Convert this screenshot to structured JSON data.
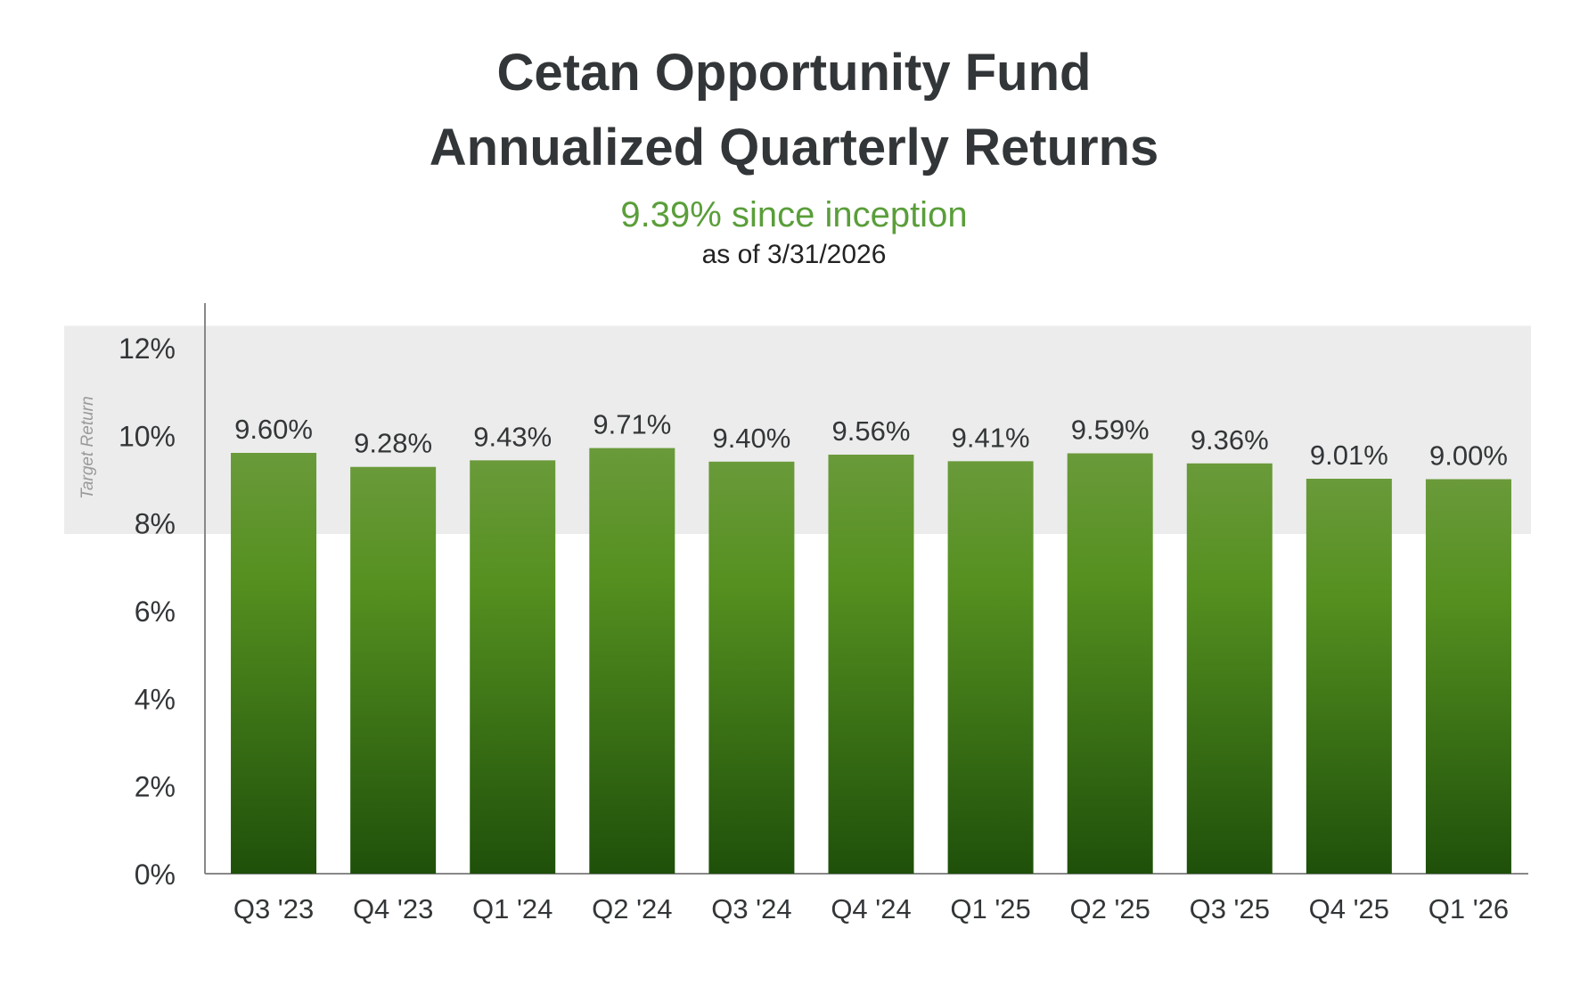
{
  "header": {
    "title_line1": "Cetan Opportunity Fund",
    "title_line2": "Annualized Quarterly Returns",
    "since_inception": "9.39% since inception",
    "as_of": "as of 3/31/2026"
  },
  "colors": {
    "bar_top": "#6a9a3a",
    "bar_mid": "#559020",
    "bar_bottom": "#1f500a",
    "target_band": "#ececec",
    "accent_green": "#5a9e3a",
    "axis": "#888888",
    "text": "#333638"
  },
  "chart_data": {
    "type": "bar",
    "categories": [
      "Q3 '23",
      "Q4 '23",
      "Q1 '24",
      "Q2 '24",
      "Q3 '24",
      "Q4 '24",
      "Q1 '25",
      "Q2 '25",
      "Q3 '25",
      "Q4 '25",
      "Q1 '26"
    ],
    "values": [
      9.6,
      9.28,
      9.43,
      9.71,
      9.4,
      9.56,
      9.41,
      9.59,
      9.36,
      9.01,
      9.0
    ],
    "value_labels": [
      "9.60%",
      "9.28%",
      "9.43%",
      "9.71%",
      "9.40%",
      "9.56%",
      "9.41%",
      "9.59%",
      "9.36%",
      "9.01%",
      "9.00%"
    ],
    "ylim": [
      0,
      12
    ],
    "yticks": [
      0,
      2,
      4,
      6,
      8,
      10,
      12
    ],
    "ytick_labels": [
      "0%",
      "2%",
      "4%",
      "6%",
      "8%",
      "10%",
      "12%"
    ],
    "target_band": {
      "label": "Target Return",
      "from": 7.75,
      "to": 12.5
    },
    "grid": false,
    "legend": "none"
  }
}
